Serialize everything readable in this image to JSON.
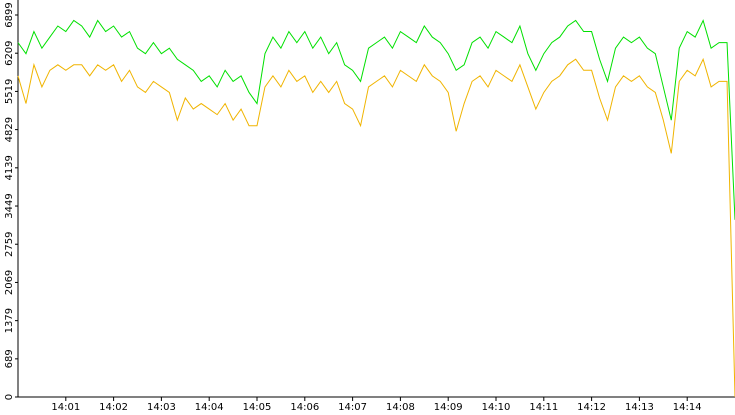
{
  "chart_data": {
    "type": "line",
    "x": [
      "14:00:00",
      "14:00:10",
      "14:00:20",
      "14:00:30",
      "14:00:40",
      "14:00:50",
      "14:01:00",
      "14:01:10",
      "14:01:20",
      "14:01:30",
      "14:01:40",
      "14:01:50",
      "14:02:00",
      "14:02:10",
      "14:02:20",
      "14:02:30",
      "14:02:40",
      "14:02:50",
      "14:03:00",
      "14:03:10",
      "14:03:20",
      "14:03:30",
      "14:03:40",
      "14:03:50",
      "14:04:00",
      "14:04:10",
      "14:04:20",
      "14:04:30",
      "14:04:40",
      "14:04:50",
      "14:05:00",
      "14:05:10",
      "14:05:20",
      "14:05:30",
      "14:05:40",
      "14:05:50",
      "14:06:00",
      "14:06:10",
      "14:06:20",
      "14:06:30",
      "14:06:40",
      "14:06:50",
      "14:07:00",
      "14:07:10",
      "14:07:20",
      "14:07:30",
      "14:07:40",
      "14:07:50",
      "14:08:00",
      "14:08:10",
      "14:08:20",
      "14:08:30",
      "14:08:40",
      "14:08:50",
      "14:09:00",
      "14:09:10",
      "14:09:20",
      "14:09:30",
      "14:09:40",
      "14:09:50",
      "14:10:00",
      "14:10:10",
      "14:10:20",
      "14:10:30",
      "14:10:40",
      "14:10:50",
      "14:11:00",
      "14:11:10",
      "14:11:20",
      "14:11:30",
      "14:11:40",
      "14:11:50",
      "14:12:00",
      "14:12:10",
      "14:12:20",
      "14:12:30",
      "14:12:40",
      "14:12:50",
      "14:13:00",
      "14:13:10",
      "14:13:20",
      "14:13:30",
      "14:13:40",
      "14:13:50",
      "14:14:00",
      "14:14:10",
      "14:14:20",
      "14:14:30",
      "14:14:40",
      "14:14:50",
      "14:15:00"
    ],
    "series": [
      {
        "color": "#00e000",
        "values": [
          6400,
          6200,
          6600,
          6300,
          6500,
          6700,
          6600,
          6800,
          6700,
          6500,
          6800,
          6600,
          6700,
          6500,
          6600,
          6300,
          6200,
          6400,
          6200,
          6300,
          6100,
          6000,
          5900,
          5700,
          5800,
          5600,
          5900,
          5700,
          5800,
          5500,
          5300,
          6200,
          6500,
          6300,
          6600,
          6400,
          6600,
          6300,
          6500,
          6200,
          6400,
          6000,
          5900,
          5700,
          6300,
          6400,
          6500,
          6300,
          6600,
          6500,
          6400,
          6700,
          6500,
          6400,
          6200,
          5900,
          6000,
          6400,
          6500,
          6300,
          6600,
          6500,
          6400,
          6700,
          6200,
          5900,
          6200,
          6400,
          6500,
          6700,
          6800,
          6600,
          6600,
          6100,
          5700,
          6300,
          6500,
          6400,
          6500,
          6300,
          6200,
          5600,
          5000,
          6300,
          6600,
          6500,
          6800,
          6300,
          6400,
          6400,
          3200
        ]
      },
      {
        "color": "#f0b400",
        "values": [
          5800,
          5300,
          6000,
          5600,
          5900,
          6000,
          5900,
          6000,
          6000,
          5800,
          6000,
          5900,
          6000,
          5700,
          5900,
          5600,
          5500,
          5700,
          5600,
          5500,
          5000,
          5400,
          5200,
          5300,
          5200,
          5100,
          5300,
          5000,
          5200,
          4900,
          4900,
          5600,
          5800,
          5600,
          5900,
          5700,
          5800,
          5500,
          5700,
          5500,
          5700,
          5300,
          5200,
          4900,
          5600,
          5700,
          5800,
          5600,
          5900,
          5800,
          5700,
          6000,
          5800,
          5700,
          5500,
          4800,
          5300,
          5700,
          5800,
          5600,
          5900,
          5800,
          5700,
          6000,
          5600,
          5200,
          5500,
          5700,
          5800,
          6000,
          6100,
          5900,
          5900,
          5400,
          5000,
          5600,
          5800,
          5700,
          5800,
          5600,
          5500,
          5000,
          4400,
          5700,
          5900,
          5800,
          6100,
          5600,
          5700,
          5700,
          0
        ]
      }
    ],
    "xlim": [
      "14:00:00",
      "14:15:00"
    ],
    "xticks": [
      "14:01",
      "14:02",
      "14:03",
      "14:04",
      "14:05",
      "14:06",
      "14:07",
      "14:08",
      "14:09",
      "14:10",
      "14:11",
      "14:12",
      "14:13",
      "14:14"
    ],
    "ylim": [
      0,
      6899
    ],
    "yticks": [
      0,
      689,
      1379,
      2069,
      2759,
      3449,
      4139,
      4829,
      5519,
      6209,
      6899
    ]
  }
}
